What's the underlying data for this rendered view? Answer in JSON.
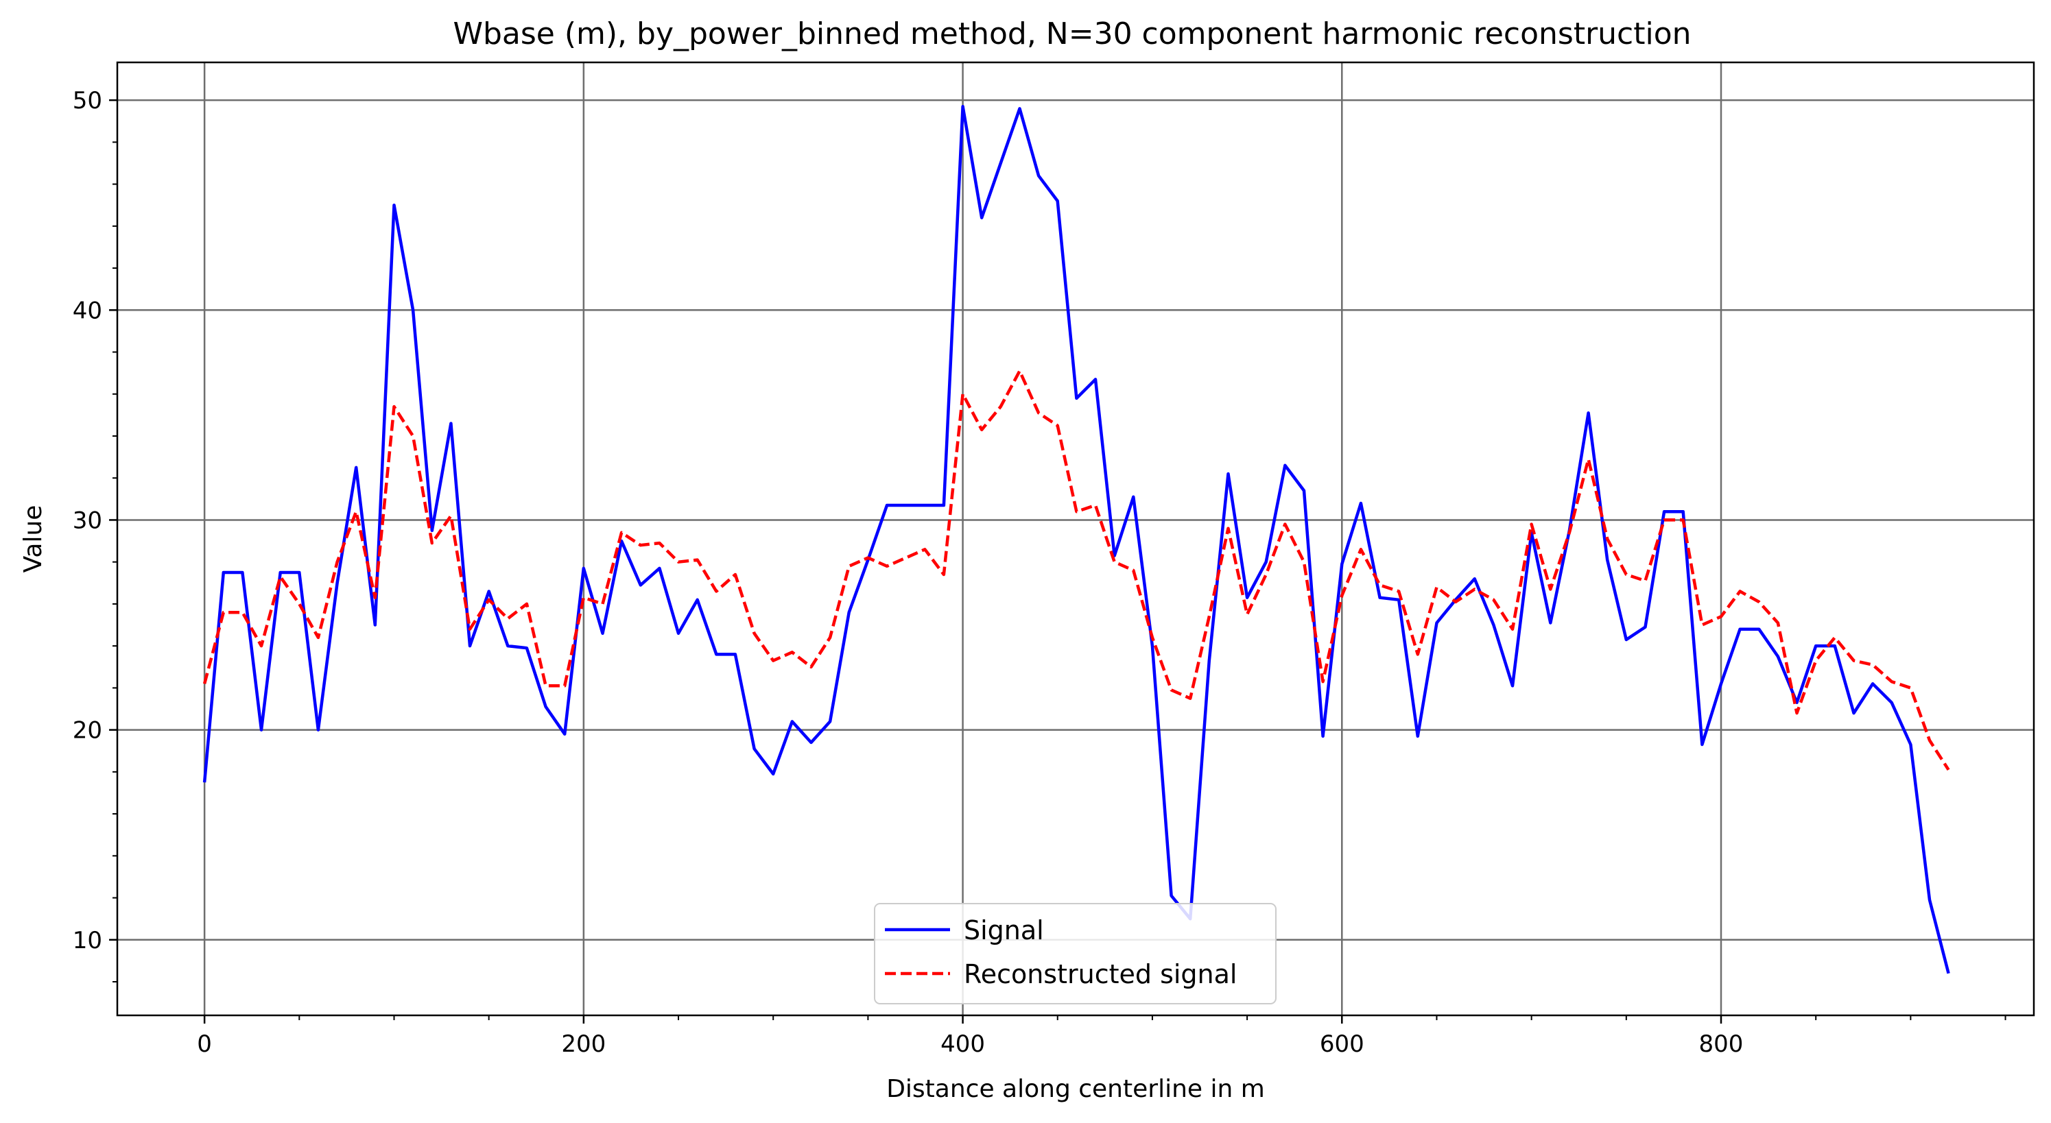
{
  "chart_data": {
    "type": "line",
    "title": "Wbase (m), by_power_binned method, N=30 component harmonic reconstruction",
    "xlabel": "Distance along centerline in m",
    "ylabel": "Value",
    "xlim": [
      -46,
      965
    ],
    "ylim": [
      6.4,
      51.8
    ],
    "xticks": [
      0,
      200,
      400,
      600,
      800
    ],
    "yticks": [
      10,
      20,
      30,
      40,
      50
    ],
    "grid": true,
    "legend_position": "bottom-center",
    "series": [
      {
        "name": "Signal",
        "color": "#0000ff",
        "style": "solid",
        "x": [
          0,
          10,
          20,
          30,
          40,
          50,
          60,
          70,
          80,
          90,
          100,
          110,
          120,
          130,
          140,
          150,
          160,
          170,
          180,
          190,
          200,
          210,
          220,
          230,
          240,
          250,
          260,
          270,
          280,
          290,
          300,
          310,
          320,
          330,
          340,
          350,
          360,
          370,
          380,
          390,
          400,
          410,
          420,
          430,
          440,
          450,
          460,
          470,
          480,
          490,
          500,
          510,
          520,
          530,
          540,
          550,
          560,
          570,
          580,
          590,
          600,
          610,
          620,
          630,
          640,
          650,
          660,
          670,
          680,
          690,
          700,
          710,
          720,
          730,
          740,
          750,
          760,
          770,
          780,
          790,
          800,
          810,
          820,
          830,
          840,
          850,
          860,
          870,
          880,
          890,
          900,
          910,
          920
        ],
        "y": [
          17.5,
          27.5,
          27.5,
          20.0,
          27.5,
          27.5,
          20.0,
          27.0,
          32.5,
          25.0,
          45.0,
          40.0,
          29.5,
          34.6,
          24.0,
          26.6,
          24.0,
          23.9,
          21.1,
          19.8,
          27.7,
          24.6,
          29.0,
          26.9,
          27.7,
          24.6,
          26.2,
          23.6,
          23.6,
          19.1,
          17.9,
          20.4,
          19.4,
          20.4,
          25.6,
          28.1,
          30.7,
          30.7,
          30.7,
          30.7,
          49.7,
          44.4,
          47.0,
          49.6,
          46.4,
          45.2,
          35.8,
          36.7,
          28.3,
          31.1,
          24.0,
          12.1,
          11.0,
          23.3,
          32.2,
          26.3,
          28.0,
          32.6,
          31.4,
          19.7,
          27.9,
          30.8,
          26.3,
          26.2,
          19.7,
          25.1,
          26.2,
          27.2,
          25.0,
          22.1,
          29.4,
          25.1,
          29.5,
          35.1,
          28.1,
          24.3,
          24.9,
          30.4,
          30.4,
          19.3,
          22.2,
          24.8,
          24.8,
          23.5,
          21.3,
          24.0,
          24.0,
          20.8,
          22.2,
          21.3,
          19.3,
          11.9,
          8.4
        ]
      },
      {
        "name": "Reconstructed signal",
        "color": "#ff0000",
        "style": "dashed",
        "x": [
          0,
          10,
          20,
          30,
          40,
          50,
          60,
          70,
          80,
          90,
          100,
          110,
          120,
          130,
          140,
          150,
          160,
          170,
          180,
          190,
          200,
          210,
          220,
          230,
          240,
          250,
          260,
          270,
          280,
          290,
          300,
          310,
          320,
          330,
          340,
          350,
          360,
          370,
          380,
          390,
          400,
          410,
          420,
          430,
          440,
          450,
          460,
          470,
          480,
          490,
          500,
          510,
          520,
          530,
          540,
          550,
          560,
          570,
          580,
          590,
          600,
          610,
          620,
          630,
          640,
          650,
          660,
          670,
          680,
          690,
          700,
          710,
          720,
          730,
          740,
          750,
          760,
          770,
          780,
          790,
          800,
          810,
          820,
          830,
          840,
          850,
          860,
          870,
          880,
          890,
          900,
          910,
          920
        ],
        "y": [
          22.2,
          25.6,
          25.6,
          24.0,
          27.3,
          26.0,
          24.4,
          28.0,
          30.4,
          26.3,
          35.4,
          34.0,
          28.9,
          30.2,
          24.8,
          26.2,
          25.3,
          26.0,
          22.1,
          22.1,
          26.3,
          26.0,
          29.4,
          28.8,
          28.9,
          28.0,
          28.1,
          26.6,
          27.4,
          24.6,
          23.3,
          23.7,
          23.0,
          24.4,
          27.8,
          28.2,
          27.8,
          28.2,
          28.6,
          27.4,
          36.0,
          34.3,
          35.4,
          37.1,
          35.1,
          34.5,
          30.4,
          30.7,
          28.0,
          27.6,
          24.4,
          21.9,
          21.5,
          25.4,
          29.6,
          25.5,
          27.4,
          29.8,
          28.0,
          22.3,
          26.4,
          28.6,
          26.9,
          26.6,
          23.6,
          26.8,
          26.1,
          26.7,
          26.2,
          24.8,
          29.8,
          26.7,
          29.4,
          32.9,
          29.1,
          27.4,
          27.1,
          30.0,
          30.0,
          25.0,
          25.4,
          26.6,
          26.1,
          25.1,
          20.8,
          23.3,
          24.4,
          23.3,
          23.1,
          22.3,
          22.0,
          19.5,
          18.1
        ]
      }
    ]
  }
}
